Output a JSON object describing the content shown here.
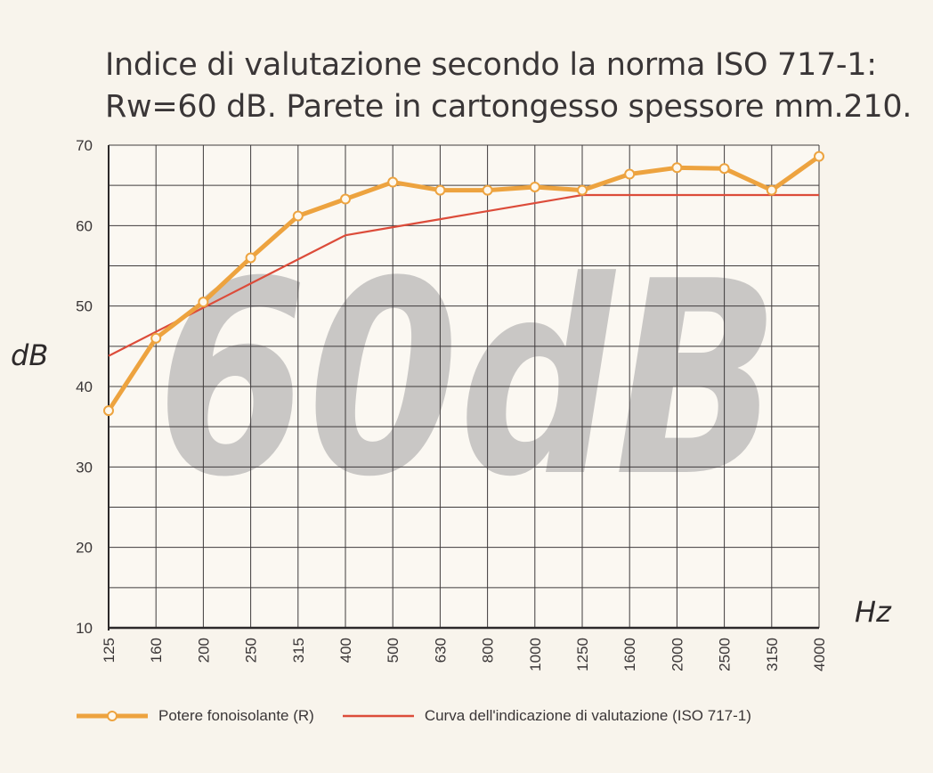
{
  "title_line1": "Indice di valutazione secondo la norma ISO 717-1:",
  "title_line2": "Rw=60 dB. Parete in cartongesso spessore mm.210.",
  "watermark": "60dB",
  "colors": {
    "background": "#f8f4ec",
    "grid": "#3f3b3c",
    "series_r": "#eda33f",
    "series_ref": "#dc4c3a",
    "watermark": "#c9c7c5"
  },
  "chart_data": {
    "type": "line",
    "title": "Indice di valutazione secondo la norma ISO 717-1: Rw=60 dB. Parete in cartongesso spessore mm.210.",
    "xlabel": "Hz",
    "ylabel": "dB",
    "categories": [
      "125",
      "160",
      "200",
      "250",
      "315",
      "400",
      "500",
      "630",
      "800",
      "1000",
      "1250",
      "1600",
      "2000",
      "2500",
      "3150",
      "4000"
    ],
    "ylim": [
      10,
      70
    ],
    "yticks": [
      10,
      20,
      30,
      40,
      50,
      60,
      70
    ],
    "grid": true,
    "legend_position": "bottom",
    "series": [
      {
        "name": "Potere fonoisolante (R)",
        "color": "#eda33f",
        "markers": true,
        "values": [
          37.0,
          46.0,
          50.5,
          56.0,
          61.2,
          63.3,
          65.4,
          64.4,
          64.4,
          64.8,
          64.4,
          66.4,
          67.2,
          67.1,
          64.4,
          68.6
        ]
      },
      {
        "name": "Curva dell'indicazione di valutazione (ISO 717-1)",
        "color": "#dc4c3a",
        "markers": false,
        "values": [
          43.8,
          46.8,
          49.8,
          52.8,
          55.8,
          58.8,
          59.8,
          60.8,
          61.8,
          62.8,
          63.8,
          63.8,
          63.8,
          63.8,
          63.8,
          63.8
        ]
      }
    ]
  }
}
